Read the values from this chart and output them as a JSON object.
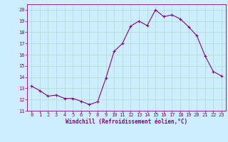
{
  "x": [
    0,
    1,
    2,
    3,
    4,
    5,
    6,
    7,
    8,
    9,
    10,
    11,
    12,
    13,
    14,
    15,
    16,
    17,
    18,
    19,
    20,
    21,
    22,
    23
  ],
  "y": [
    13.2,
    12.8,
    12.3,
    12.4,
    12.1,
    12.1,
    11.85,
    11.55,
    11.8,
    13.9,
    16.3,
    17.0,
    18.55,
    19.0,
    18.6,
    20.0,
    19.4,
    19.55,
    19.2,
    18.5,
    17.7,
    15.9,
    14.5,
    14.1
  ],
  "line_color": "#880088",
  "marker": "+",
  "marker_size": 3,
  "bg_color": "#cceeff",
  "grid_color": "#aaddcc",
  "xlabel": "Windchill (Refroidissement éolien,°C)",
  "xlabel_color": "#880088",
  "tick_color": "#880088",
  "xlim": [
    -0.5,
    23.5
  ],
  "ylim": [
    11,
    20.5
  ],
  "yticks": [
    11,
    12,
    13,
    14,
    15,
    16,
    17,
    18,
    19,
    20
  ],
  "xticks": [
    0,
    1,
    2,
    3,
    4,
    5,
    6,
    7,
    8,
    9,
    10,
    11,
    12,
    13,
    14,
    15,
    16,
    17,
    18,
    19,
    20,
    21,
    22,
    23
  ]
}
